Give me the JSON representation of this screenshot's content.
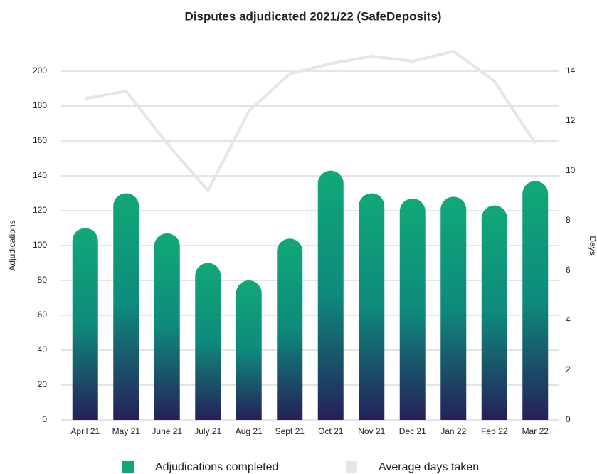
{
  "chart_data": {
    "type": "bar_line",
    "title": "Disputes adjudicated 2021/22 (SafeDeposits)",
    "y_label": "Adjudications",
    "y2_label": "Days",
    "categories": [
      "April 21",
      "May 21",
      "June 21",
      "July 21",
      "Aug 21",
      "Sept 21",
      "Oct 21",
      "Nov 21",
      "Dec 21",
      "Jan 22",
      "Feb 22",
      "Mar 22"
    ],
    "series": [
      {
        "name": "Adjudications completed",
        "type": "bar",
        "color": "#10a878",
        "values": [
          110,
          130,
          107,
          90,
          80,
          104,
          143,
          130,
          127,
          128,
          123,
          137
        ]
      },
      {
        "name": "Average days taken",
        "type": "line",
        "axis": "y2",
        "color": "#e6e6e6",
        "values": [
          12.9,
          13.2,
          11.1,
          9.2,
          12.4,
          13.9,
          14.3,
          14.6,
          14.4,
          14.8,
          13.6,
          11.1
        ]
      }
    ],
    "ylim": [
      0,
      200
    ],
    "yticks": [
      0,
      20,
      40,
      60,
      80,
      100,
      120,
      140,
      160,
      180,
      200
    ],
    "y2lim": [
      0,
      14
    ],
    "y2ticks": [
      0,
      2,
      4,
      6,
      8,
      10,
      12,
      14
    ],
    "grid": true,
    "legend": "bottom"
  }
}
